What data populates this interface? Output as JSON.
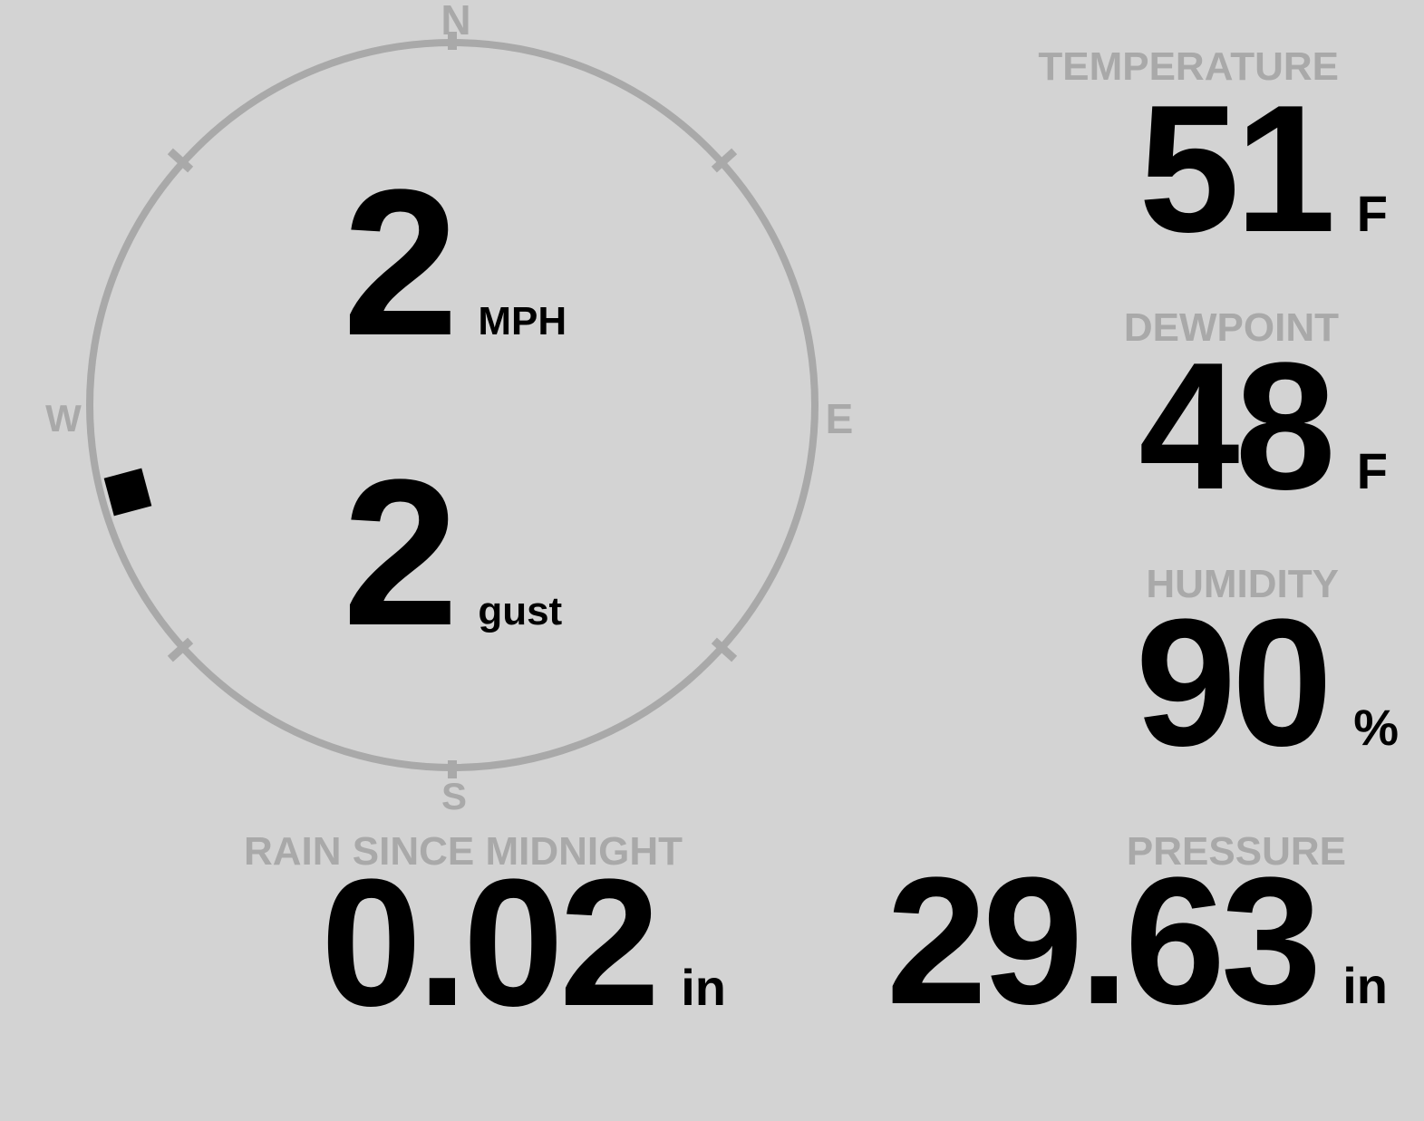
{
  "theme": {
    "background": "#d3d3d3",
    "muted_gray": "#a9a9a9",
    "value_black": "#000000"
  },
  "wind_gauge": {
    "cardinals": {
      "n": "N",
      "e": "E",
      "s": "S",
      "w": "W"
    },
    "speed_value": "2",
    "speed_unit": "MPH",
    "gust_value": "2",
    "gust_unit": "gust",
    "direction_deg": 255
  },
  "stats": {
    "temperature": {
      "label": "TEMPERATURE",
      "value": "51",
      "unit": "F"
    },
    "dewpoint": {
      "label": "DEWPOINT",
      "value": "48",
      "unit": "F"
    },
    "humidity": {
      "label": "HUMIDITY",
      "value": "90",
      "unit": "%"
    },
    "rain": {
      "label": "RAIN SINCE MIDNIGHT",
      "value": "0.02",
      "unit": "in"
    },
    "pressure": {
      "label": "PRESSURE",
      "value": "29.63",
      "unit": "in"
    }
  }
}
